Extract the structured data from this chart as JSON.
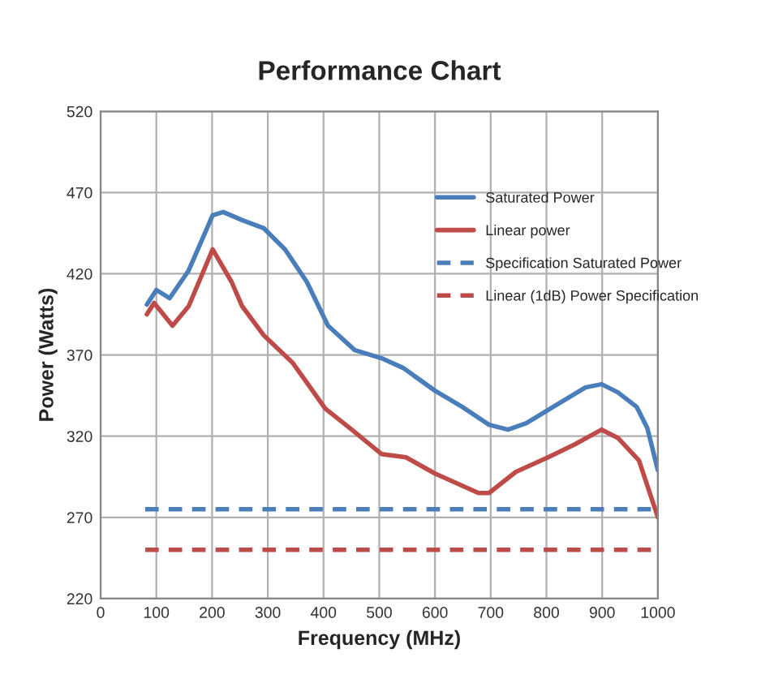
{
  "chart_data": {
    "type": "line",
    "title": "Performance Chart",
    "xlabel": "Frequency (MHz)",
    "ylabel": "Power (Watts)",
    "xlim": [
      0,
      1000
    ],
    "xticks": [
      0,
      100,
      200,
      300,
      400,
      500,
      600,
      700,
      800,
      900,
      1000
    ],
    "ylim": [
      220,
      520
    ],
    "yticks": [
      220,
      270,
      320,
      370,
      420,
      470,
      520
    ],
    "grid": true,
    "legend": "right",
    "marker": "none",
    "series": [
      {
        "name": "Saturated Power",
        "color": "#4a7ebb",
        "line_style": "solid",
        "x": [
          83,
          100,
          124,
          158,
          201,
          220,
          254,
          293,
          331,
          370,
          408,
          456,
          504,
          543,
          600,
          649,
          697,
          731,
          764,
          812,
          870,
          899,
          928,
          962,
          981,
          1000
        ],
        "values": [
          401,
          410,
          405,
          422,
          456,
          458,
          453,
          448,
          435,
          415,
          388,
          373,
          368,
          362,
          348,
          338,
          327,
          324,
          328,
          338,
          350,
          352,
          347,
          338,
          325,
          299
        ]
      },
      {
        "name": "Linear power",
        "color": "#be4b48",
        "line_style": "solid",
        "x": [
          83,
          96,
          129,
          158,
          201,
          235,
          254,
          293,
          345,
          370,
          403,
          447,
          504,
          548,
          600,
          678,
          697,
          745,
          803,
          851,
          899,
          928,
          966,
          1000
        ],
        "values": [
          395,
          402,
          388,
          400,
          435,
          415,
          400,
          382,
          365,
          353,
          337,
          325,
          309,
          307,
          297,
          285,
          285,
          298,
          307,
          315,
          324,
          319,
          305,
          270
        ]
      },
      {
        "name": "Specification Saturated Power",
        "color": "#4a7ebb",
        "line_style": "dashed",
        "x": [
          80,
          1000
        ],
        "values": [
          275,
          275
        ]
      },
      {
        "name": "Linear (1dB) Power Specification",
        "color": "#be4b48",
        "line_style": "dashed",
        "x": [
          80,
          1000
        ],
        "values": [
          250,
          250
        ]
      }
    ]
  }
}
